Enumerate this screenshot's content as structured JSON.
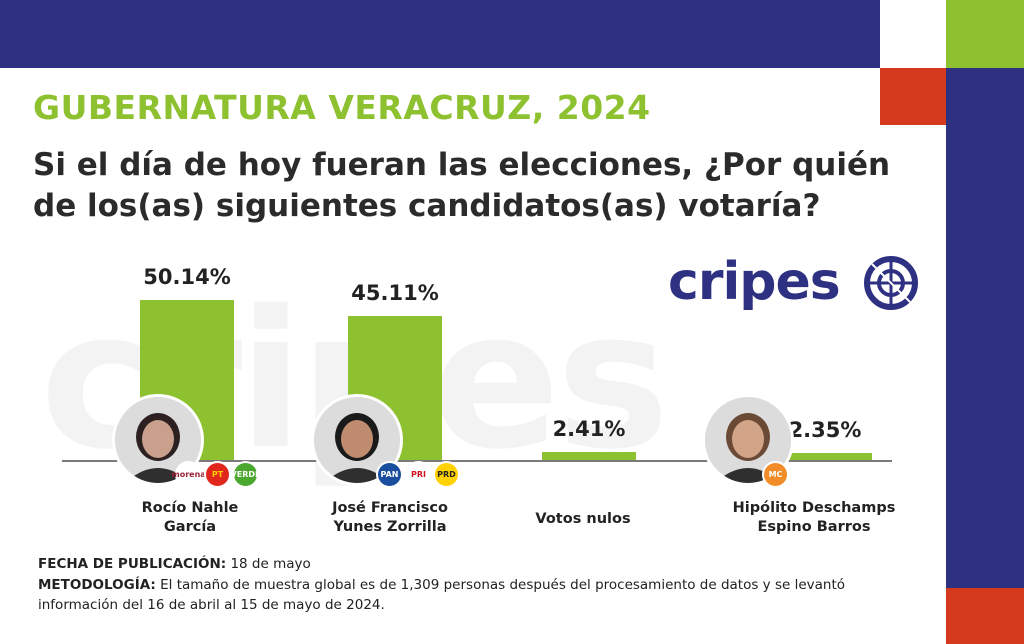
{
  "header": {
    "title": "GUBERNATURA VERACRUZ, 2024",
    "question": "Si el día de hoy fueran las elecciones, ¿Por quién de los(as) siguientes candidatos(as) votaría?"
  },
  "logo": {
    "text": "cripes"
  },
  "colors": {
    "navy": "#2e3182",
    "green": "#8dc12f",
    "red": "#d63a1e"
  },
  "chart_data": {
    "type": "bar",
    "categories": [
      "Rocío Nahle García",
      "José Francisco Yunes Zorrilla",
      "Votos nulos",
      "Hipólito Deschamps Espino Barros"
    ],
    "values": [
      50.14,
      45.11,
      2.41,
      2.35
    ],
    "value_labels": [
      "50.14%",
      "45.11%",
      "2.41%",
      "2.35%"
    ],
    "label_lines": [
      [
        "Rocío Nahle",
        "García"
      ],
      [
        "José Francisco",
        "Yunes Zorrilla"
      ],
      [
        "Votos nulos"
      ],
      [
        "Hipólito Deschamps",
        "Espino Barros"
      ]
    ],
    "parties": [
      [
        "morena",
        "PT",
        "VERDE"
      ],
      [
        "PAN",
        "PRI",
        "PRD"
      ],
      [],
      [
        "MC"
      ]
    ],
    "ylim": [
      0,
      55
    ]
  },
  "footer": {
    "fecha_label": "FECHA DE PUBLICACIÓN:",
    "fecha_value": "18 de mayo",
    "metodologia_label": "METODOLOGÍA:",
    "metodologia_line1": "El tamaño de muestra global es de 1,309 personas después del procesamiento de datos y se levantó",
    "metodologia_line2": "información del 16 de abril al 15 de mayo de 2024."
  }
}
